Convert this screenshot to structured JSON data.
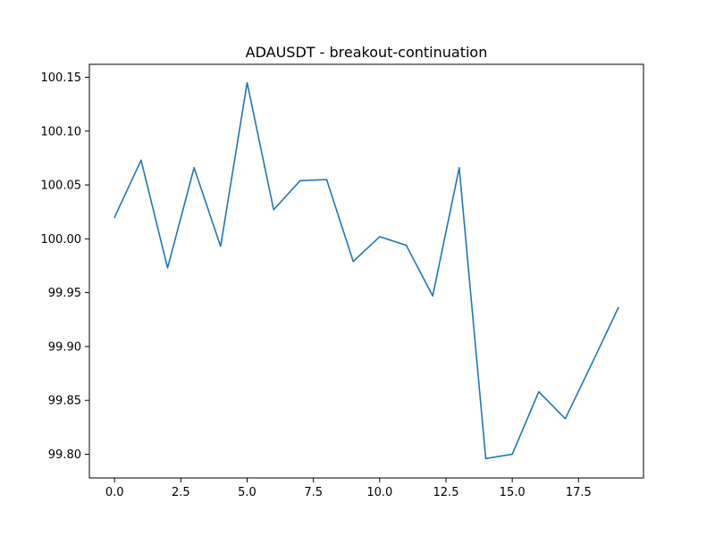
{
  "chart_data": {
    "type": "line",
    "title": "ADAUSDT - breakout-continuation",
    "xlabel": "",
    "ylabel": "",
    "xlim": [
      -0.95,
      19.95
    ],
    "ylim": [
      99.778,
      100.162
    ],
    "grid": false,
    "x_ticks": [
      0.0,
      2.5,
      5.0,
      7.5,
      10.0,
      12.5,
      15.0,
      17.5
    ],
    "x_tick_labels": [
      "0.0",
      "2.5",
      "5.0",
      "7.5",
      "10.0",
      "12.5",
      "15.0",
      "17.5"
    ],
    "y_ticks": [
      99.8,
      99.85,
      99.9,
      99.95,
      100.0,
      100.05,
      100.1,
      100.15
    ],
    "y_tick_labels": [
      "99.80",
      "99.85",
      "99.90",
      "99.95",
      "100.00",
      "100.05",
      "100.10",
      "100.15"
    ],
    "series": [
      {
        "color": "#1f77b4",
        "x": [
          0,
          1,
          2,
          3,
          4,
          5,
          6,
          7,
          8,
          9,
          10,
          11,
          12,
          13,
          14,
          15,
          16,
          17,
          18,
          19
        ],
        "y": [
          100.02,
          100.073,
          99.973,
          100.066,
          99.993,
          100.145,
          100.027,
          100.054,
          100.055,
          99.979,
          100.002,
          99.994,
          99.947,
          100.066,
          99.796,
          99.8,
          99.858,
          99.833,
          99.884,
          99.936
        ]
      }
    ]
  }
}
